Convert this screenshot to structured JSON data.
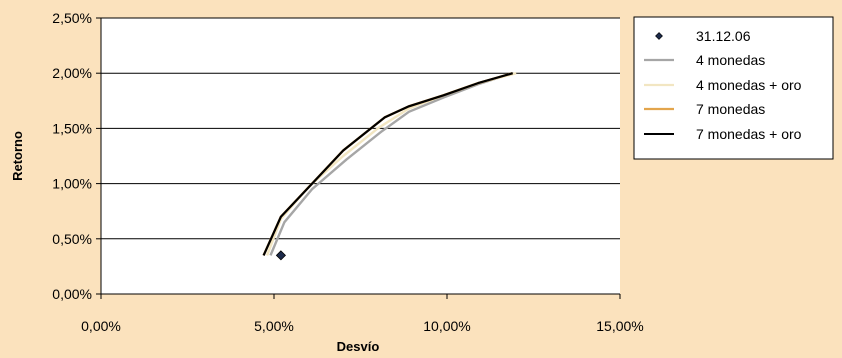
{
  "chart_data": {
    "type": "line",
    "xlabel": "Desvío",
    "ylabel": "Retorno",
    "xlim": [
      0,
      15
    ],
    "ylim": [
      0,
      2.5
    ],
    "x_ticks": [
      "0,00%",
      "5,00%",
      "10,00%",
      "15,00%"
    ],
    "y_ticks": [
      "0,00%",
      "0,50%",
      "1,00%",
      "1,50%",
      "2,00%",
      "2,50%"
    ],
    "x_tick_values": [
      0,
      5,
      10,
      15
    ],
    "y_tick_values": [
      0,
      0.5,
      1,
      1.5,
      2,
      2.5
    ],
    "grid": "horizontal",
    "legend_position": "right",
    "series": [
      {
        "name": "31.12.06",
        "kind": "point",
        "color": "#1C2A4A",
        "x": [
          5.2
        ],
        "y": [
          0.35
        ]
      },
      {
        "name": "4 monedas",
        "kind": "line",
        "color": "#A6A6A6",
        "x": [
          4.9,
          5.3,
          6.1,
          7.1,
          8.1,
          8.9,
          9.9,
          10.9,
          11.9
        ],
        "y": [
          0.35,
          0.65,
          0.95,
          1.22,
          1.47,
          1.65,
          1.78,
          1.9,
          2.0
        ]
      },
      {
        "name": "4 monedas + oro",
        "kind": "line",
        "color": "#F2E6C2",
        "x": [
          4.8,
          5.2,
          6.0,
          7.0,
          8.0,
          8.9,
          9.9,
          10.9,
          12.0
        ],
        "y": [
          0.35,
          0.68,
          0.97,
          1.25,
          1.5,
          1.68,
          1.8,
          1.91,
          2.0
        ]
      },
      {
        "name": "7 monedas",
        "kind": "line",
        "color": "#E3A54C",
        "x": [
          4.7,
          5.2,
          6.1,
          7.0,
          8.2,
          8.9,
          9.9,
          10.9,
          11.9
        ],
        "y": [
          0.35,
          0.7,
          1.0,
          1.3,
          1.6,
          1.7,
          1.8,
          1.91,
          2.0
        ]
      },
      {
        "name": "7 monedas + oro",
        "kind": "line",
        "color": "#000000",
        "x": [
          4.7,
          5.2,
          6.1,
          7.0,
          8.2,
          8.9,
          9.9,
          10.9,
          11.9
        ],
        "y": [
          0.35,
          0.7,
          1.0,
          1.3,
          1.6,
          1.7,
          1.8,
          1.91,
          2.0
        ]
      }
    ]
  }
}
